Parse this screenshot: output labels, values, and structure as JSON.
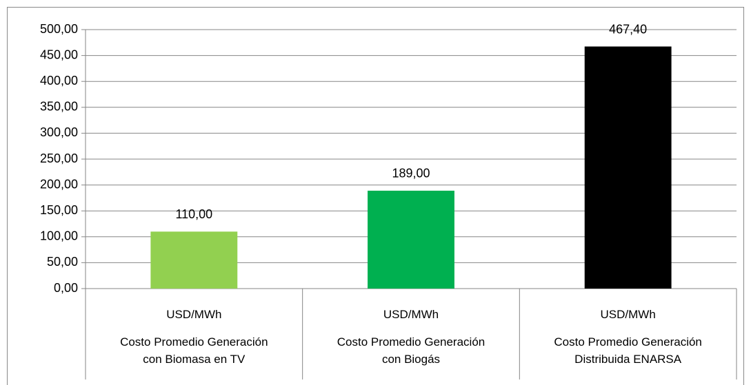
{
  "chart_data": {
    "type": "bar",
    "categories": [
      "Costo Promedio Generación con Biomasa en TV",
      "Costo Promedio Generación con Biogás",
      "Costo Promedio Generación Distribuida ENARSA"
    ],
    "category_units": [
      "USD/MWh",
      "USD/MWh",
      "USD/MWh"
    ],
    "values": [
      110,
      189,
      467.4
    ],
    "value_labels": [
      "110,00",
      "189,00",
      "467,40"
    ],
    "colors": [
      "#92d050",
      "#00b050",
      "#000000"
    ],
    "ylim": [
      0,
      500
    ],
    "yticks": [
      {
        "value": 0,
        "label": "0,00"
      },
      {
        "value": 50,
        "label": "50,00"
      },
      {
        "value": 100,
        "label": "100,00"
      },
      {
        "value": 150,
        "label": "150,00"
      },
      {
        "value": 200,
        "label": "200,00"
      },
      {
        "value": 250,
        "label": "250,00"
      },
      {
        "value": 300,
        "label": "300,00"
      },
      {
        "value": 350,
        "label": "350,00"
      },
      {
        "value": 400,
        "label": "400,00"
      },
      {
        "value": 450,
        "label": "450,00"
      },
      {
        "value": 500,
        "label": "500,00"
      }
    ],
    "grid": true
  }
}
